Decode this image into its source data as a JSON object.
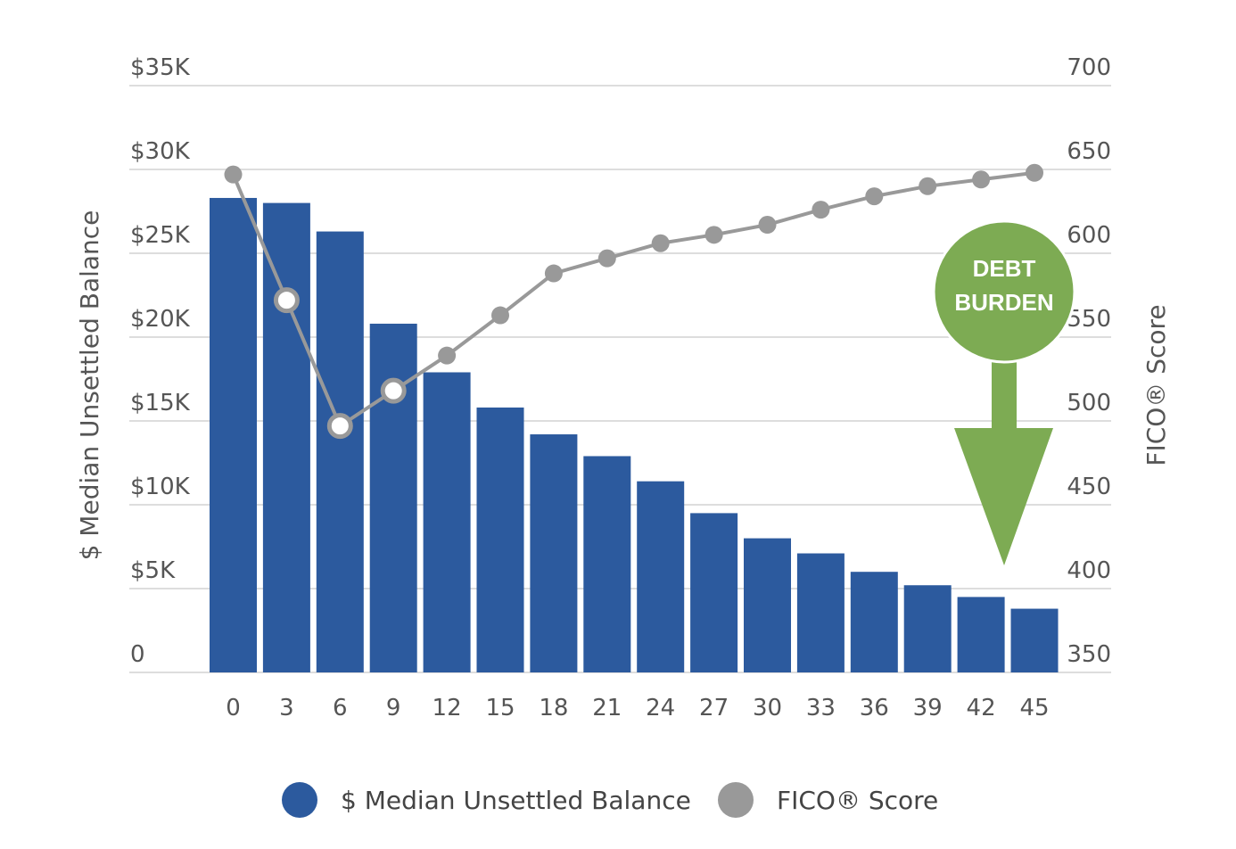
{
  "chart_data": {
    "type": "bar+line",
    "categories": [
      "0",
      "3",
      "6",
      "9",
      "12",
      "15",
      "18",
      "21",
      "24",
      "27",
      "30",
      "33",
      "36",
      "39",
      "42",
      "45"
    ],
    "series": [
      {
        "name": "$ Median Unsettled Balance",
        "type": "bar",
        "axis": "left",
        "color": "#2c5a9e",
        "values": [
          28300,
          28000,
          26300,
          20800,
          17900,
          15800,
          14200,
          12900,
          11400,
          9500,
          8000,
          7100,
          6000,
          5200,
          4500,
          3800
        ]
      },
      {
        "name": "FICO® Score",
        "type": "line",
        "axis": "right",
        "color": "#999999",
        "values": [
          647,
          572,
          497,
          518,
          539,
          563,
          588,
          597,
          606,
          611,
          617,
          626,
          634,
          640,
          644,
          648
        ],
        "highlighted_indices": [
          1,
          2,
          3
        ]
      }
    ],
    "left_axis": {
      "title": "$ Median Unsettled Balance",
      "range": [
        0,
        35000
      ],
      "ticks": [
        0,
        5000,
        10000,
        15000,
        20000,
        25000,
        30000,
        35000
      ],
      "tick_labels": [
        "0",
        "$5K",
        "$10K",
        "$15K",
        "$20K",
        "$25K",
        "$30K",
        "$35K"
      ]
    },
    "right_axis": {
      "title": "FICO® Score",
      "range": [
        350,
        700
      ],
      "ticks": [
        350,
        400,
        450,
        500,
        550,
        600,
        650,
        700
      ],
      "tick_labels": [
        "350",
        "400",
        "450",
        "500",
        "550",
        "600",
        "650",
        "700"
      ]
    },
    "grid": true,
    "legend_position": "bottom",
    "annotation": {
      "lines": [
        "DEBT",
        "BURDEN"
      ],
      "color": "#7dab53"
    }
  },
  "legend": {
    "items": [
      {
        "label": "$ Median Unsettled Balance",
        "color": "#2c5a9e"
      },
      {
        "label": "FICO® Score",
        "color": "#999999"
      }
    ]
  }
}
